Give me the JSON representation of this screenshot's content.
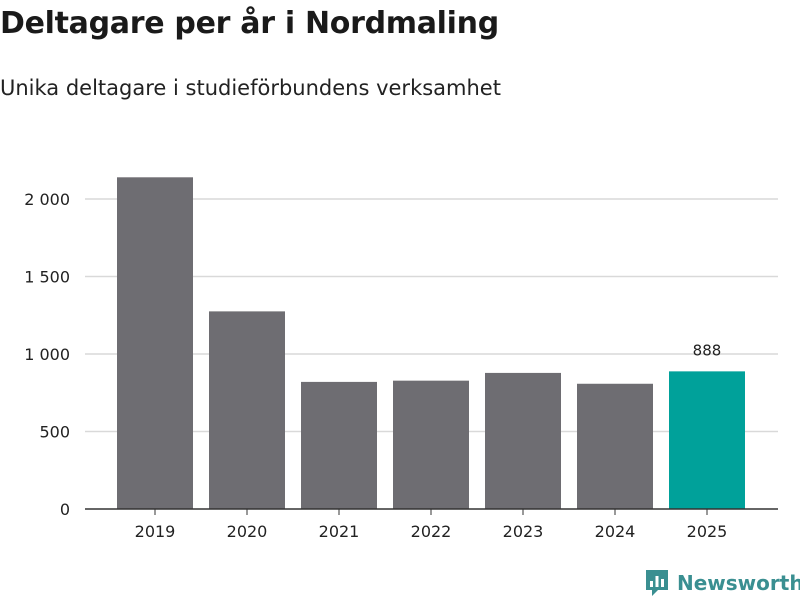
{
  "title": "Deltagare per år i Nordmaling",
  "subtitle": "Unika deltagare i studieförbundens verksamhet",
  "brand": "Newsworthy",
  "colors": {
    "bar": "#6e6d72",
    "highlight": "#00a19a",
    "grid": "#d9d9d9",
    "axis": "#333333",
    "brand": "#3a8f91"
  },
  "chart_data": {
    "type": "bar",
    "title": "Deltagare per år i Nordmaling",
    "subtitle": "Unika deltagare i studieförbundens verksamhet",
    "categories": [
      "2019",
      "2020",
      "2021",
      "2022",
      "2023",
      "2024",
      "2025"
    ],
    "values": [
      2140,
      1275,
      820,
      828,
      878,
      808,
      888
    ],
    "highlight_index": 6,
    "data_labels": [
      {
        "index": 6,
        "text": "888"
      }
    ],
    "ylim": [
      0,
      2000
    ],
    "yticks": [
      0,
      500,
      1000,
      1500,
      2000
    ],
    "ytick_labels": [
      "0",
      "500",
      "1 000",
      "1 500",
      "2 000"
    ],
    "xlabel": "",
    "ylabel": "",
    "grid": true
  }
}
